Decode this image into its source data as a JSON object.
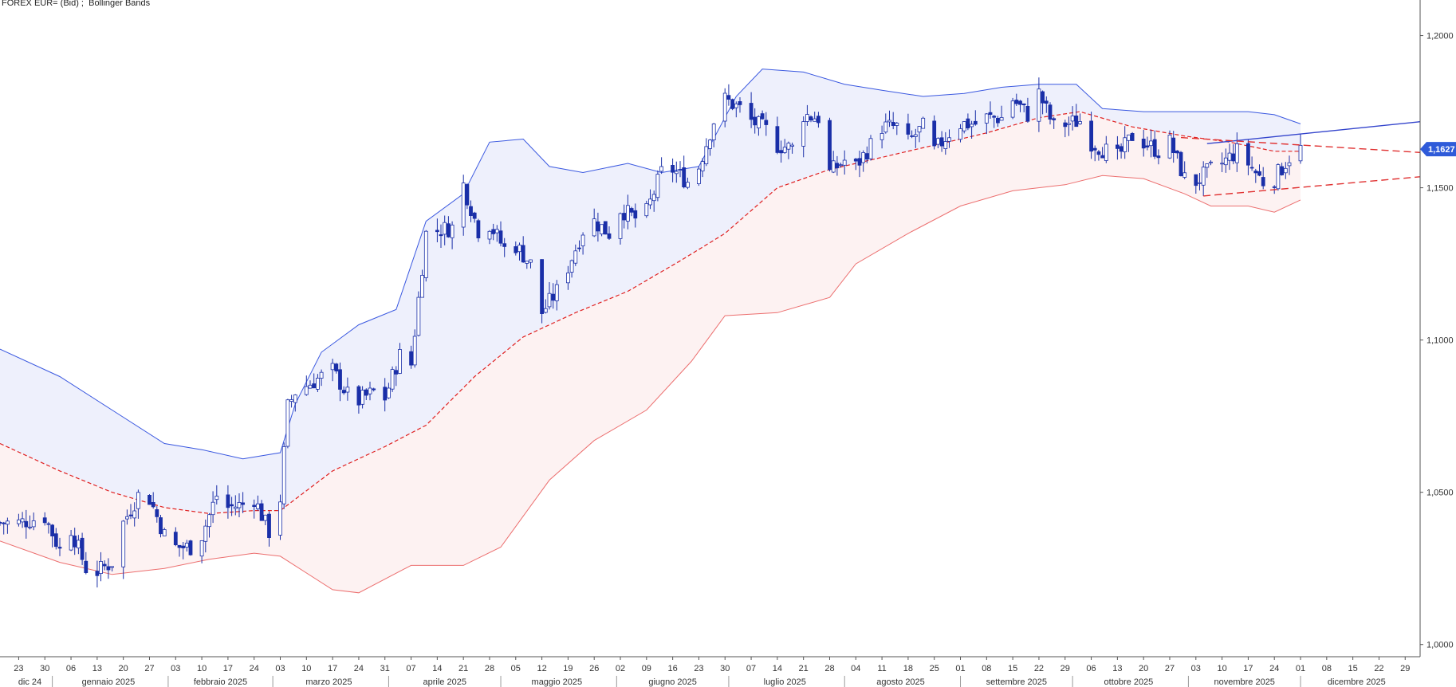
{
  "header": {
    "title": "FOREX EUR= (Bid) ;  Bollinger Bands"
  },
  "window_controls": [
    "□",
    "✕"
  ],
  "chart_data": {
    "type": "candlestick",
    "title": "FOREX EUR= (Bid) ;  Bollinger Bands",
    "instrument": "EUR=",
    "y_ticks": [
      "1,2000",
      "1,1500",
      "1,1000",
      "1,0500",
      "1,0000"
    ],
    "y_tick_values": [
      1.2,
      1.15,
      1.1,
      1.05,
      1.0
    ],
    "ylim": [
      0.996,
      1.208
    ],
    "last_price_label": "1,1627",
    "last_price": 1.1627,
    "x_start_date": "2024-12-18",
    "x_end_date": "2026-01-02",
    "day_ticks": [
      {
        "label": "23",
        "date": "2024-12-23"
      },
      {
        "label": "30",
        "date": "2024-12-30"
      },
      {
        "label": "06",
        "date": "2025-01-06"
      },
      {
        "label": "13",
        "date": "2025-01-13"
      },
      {
        "label": "20",
        "date": "2025-01-20"
      },
      {
        "label": "27",
        "date": "2025-01-27"
      },
      {
        "label": "03",
        "date": "2025-02-03"
      },
      {
        "label": "10",
        "date": "2025-02-10"
      },
      {
        "label": "17",
        "date": "2025-02-17"
      },
      {
        "label": "24",
        "date": "2025-02-24"
      },
      {
        "label": "03",
        "date": "2025-03-03"
      },
      {
        "label": "10",
        "date": "2025-03-10"
      },
      {
        "label": "17",
        "date": "2025-03-17"
      },
      {
        "label": "24",
        "date": "2025-03-24"
      },
      {
        "label": "31",
        "date": "2025-03-31"
      },
      {
        "label": "07",
        "date": "2025-04-07"
      },
      {
        "label": "14",
        "date": "2025-04-14"
      },
      {
        "label": "21",
        "date": "2025-04-21"
      },
      {
        "label": "28",
        "date": "2025-04-28"
      },
      {
        "label": "05",
        "date": "2025-05-05"
      },
      {
        "label": "12",
        "date": "2025-05-12"
      },
      {
        "label": "19",
        "date": "2025-05-19"
      },
      {
        "label": "26",
        "date": "2025-05-26"
      },
      {
        "label": "02",
        "date": "2025-06-02"
      },
      {
        "label": "09",
        "date": "2025-06-09"
      },
      {
        "label": "16",
        "date": "2025-06-16"
      },
      {
        "label": "23",
        "date": "2025-06-23"
      },
      {
        "label": "30",
        "date": "2025-06-30"
      },
      {
        "label": "07",
        "date": "2025-07-07"
      },
      {
        "label": "14",
        "date": "2025-07-14"
      },
      {
        "label": "21",
        "date": "2025-07-21"
      },
      {
        "label": "28",
        "date": "2025-07-28"
      },
      {
        "label": "04",
        "date": "2025-08-04"
      },
      {
        "label": "11",
        "date": "2025-08-11"
      },
      {
        "label": "18",
        "date": "2025-08-18"
      },
      {
        "label": "25",
        "date": "2025-08-25"
      },
      {
        "label": "01",
        "date": "2025-09-01"
      },
      {
        "label": "08",
        "date": "2025-09-08"
      },
      {
        "label": "15",
        "date": "2025-09-15"
      },
      {
        "label": "22",
        "date": "2025-09-22"
      },
      {
        "label": "29",
        "date": "2025-09-29"
      },
      {
        "label": "06",
        "date": "2025-10-06"
      },
      {
        "label": "13",
        "date": "2025-10-13"
      },
      {
        "label": "20",
        "date": "2025-10-20"
      },
      {
        "label": "27",
        "date": "2025-10-27"
      },
      {
        "label": "03",
        "date": "2025-11-03"
      },
      {
        "label": "10",
        "date": "2025-11-10"
      },
      {
        "label": "17",
        "date": "2025-11-17"
      },
      {
        "label": "24",
        "date": "2025-11-24"
      },
      {
        "label": "01",
        "date": "2025-12-01"
      },
      {
        "label": "08",
        "date": "2025-12-08"
      },
      {
        "label": "15",
        "date": "2025-12-15"
      },
      {
        "label": "22",
        "date": "2025-12-22"
      },
      {
        "label": "29",
        "date": "2025-12-29"
      }
    ],
    "month_labels": [
      {
        "label": "dic 24",
        "date": "2024-12-26"
      },
      {
        "label": "gennaio 2025",
        "date": "2025-01-16"
      },
      {
        "label": "febbraio 2025",
        "date": "2025-02-15"
      },
      {
        "label": "marzo 2025",
        "date": "2025-03-16"
      },
      {
        "label": "aprile 2025",
        "date": "2025-04-16"
      },
      {
        "label": "maggio 2025",
        "date": "2025-05-16"
      },
      {
        "label": "giugno 2025",
        "date": "2025-06-16"
      },
      {
        "label": "luglio 2025",
        "date": "2025-07-16"
      },
      {
        "label": "agosto 2025",
        "date": "2025-08-16"
      },
      {
        "label": "settembre 2025",
        "date": "2025-09-16"
      },
      {
        "label": "ottobre 2025",
        "date": "2025-10-16"
      },
      {
        "label": "novembre 2025",
        "date": "2025-11-16"
      },
      {
        "label": "dicembre 2025",
        "date": "2025-12-16"
      }
    ],
    "month_boundaries": [
      "2025-01-01",
      "2025-02-01",
      "2025-03-01",
      "2025-04-01",
      "2025-05-01",
      "2025-06-01",
      "2025-07-01",
      "2025-08-01",
      "2025-09-01",
      "2025-10-01",
      "2025-11-01",
      "2025-12-01"
    ],
    "close_path": [
      [
        "2024-12-18",
        1.04
      ],
      [
        "2024-12-23",
        1.04
      ],
      [
        "2024-12-30",
        1.042
      ],
      [
        "2025-01-03",
        1.031
      ],
      [
        "2025-01-06",
        1.038
      ],
      [
        "2025-01-10",
        1.025
      ],
      [
        "2025-01-13",
        1.024
      ],
      [
        "2025-01-17",
        1.027
      ],
      [
        "2025-01-20",
        1.04
      ],
      [
        "2025-01-24",
        1.049
      ],
      [
        "2025-01-27",
        1.048
      ],
      [
        "2025-01-31",
        1.036
      ],
      [
        "2025-02-03",
        1.032
      ],
      [
        "2025-02-07",
        1.032
      ],
      [
        "2025-02-10",
        1.036
      ],
      [
        "2025-02-14",
        1.049
      ],
      [
        "2025-02-17",
        1.045
      ],
      [
        "2025-02-21",
        1.046
      ],
      [
        "2025-02-24",
        1.048
      ],
      [
        "2025-02-28",
        1.037
      ],
      [
        "2025-03-03",
        1.048
      ],
      [
        "2025-03-05",
        1.078
      ],
      [
        "2025-03-07",
        1.083
      ],
      [
        "2025-03-10",
        1.085
      ],
      [
        "2025-03-14",
        1.088
      ],
      [
        "2025-03-17",
        1.09
      ],
      [
        "2025-03-21",
        1.082
      ],
      [
        "2025-03-24",
        1.08
      ],
      [
        "2025-03-28",
        1.083
      ],
      [
        "2025-03-31",
        1.081
      ],
      [
        "2025-04-04",
        1.095
      ],
      [
        "2025-04-07",
        1.092
      ],
      [
        "2025-04-11",
        1.135
      ],
      [
        "2025-04-14",
        1.136
      ],
      [
        "2025-04-18",
        1.137
      ],
      [
        "2025-04-21",
        1.151
      ],
      [
        "2025-04-25",
        1.136
      ],
      [
        "2025-04-28",
        1.138
      ],
      [
        "2025-05-02",
        1.13
      ],
      [
        "2025-05-05",
        1.131
      ],
      [
        "2025-05-09",
        1.125
      ],
      [
        "2025-05-12",
        1.109
      ],
      [
        "2025-05-16",
        1.116
      ],
      [
        "2025-05-19",
        1.124
      ],
      [
        "2025-05-23",
        1.136
      ],
      [
        "2025-05-26",
        1.139
      ],
      [
        "2025-05-30",
        1.135
      ],
      [
        "2025-06-02",
        1.143
      ],
      [
        "2025-06-06",
        1.14
      ],
      [
        "2025-06-09",
        1.142
      ],
      [
        "2025-06-13",
        1.155
      ],
      [
        "2025-06-16",
        1.156
      ],
      [
        "2025-06-20",
        1.152
      ],
      [
        "2025-06-23",
        1.157
      ],
      [
        "2025-06-27",
        1.172
      ],
      [
        "2025-06-30",
        1.179
      ],
      [
        "2025-07-04",
        1.176
      ],
      [
        "2025-07-07",
        1.172
      ],
      [
        "2025-07-11",
        1.169
      ],
      [
        "2025-07-14",
        1.164
      ],
      [
        "2025-07-18",
        1.163
      ],
      [
        "2025-07-21",
        1.174
      ],
      [
        "2025-07-25",
        1.173
      ],
      [
        "2025-07-28",
        1.155
      ],
      [
        "2025-08-01",
        1.159
      ],
      [
        "2025-08-04",
        1.157
      ],
      [
        "2025-08-08",
        1.164
      ],
      [
        "2025-08-11",
        1.17
      ],
      [
        "2025-08-15",
        1.17
      ],
      [
        "2025-08-18",
        1.165
      ],
      [
        "2025-08-22",
        1.17
      ],
      [
        "2025-08-25",
        1.162
      ],
      [
        "2025-08-29",
        1.168
      ],
      [
        "2025-09-01",
        1.171
      ],
      [
        "2025-09-05",
        1.171
      ],
      [
        "2025-09-08",
        1.173
      ],
      [
        "2025-09-12",
        1.173
      ],
      [
        "2025-09-15",
        1.179
      ],
      [
        "2025-09-19",
        1.174
      ],
      [
        "2025-09-22",
        1.181
      ],
      [
        "2025-09-26",
        1.17
      ],
      [
        "2025-09-29",
        1.171
      ],
      [
        "2025-10-03",
        1.172
      ],
      [
        "2025-10-06",
        1.165
      ],
      [
        "2025-10-10",
        1.162
      ],
      [
        "2025-10-13",
        1.16
      ],
      [
        "2025-10-17",
        1.167
      ],
      [
        "2025-10-20",
        1.165
      ],
      [
        "2025-10-24",
        1.162
      ],
      [
        "2025-10-27",
        1.165
      ],
      [
        "2025-10-31",
        1.153
      ],
      [
        "2025-11-03",
        1.152
      ],
      [
        "2025-11-07",
        1.156
      ],
      [
        "2025-11-10",
        1.158
      ],
      [
        "2025-11-14",
        1.162
      ],
      [
        "2025-11-17",
        1.158
      ],
      [
        "2025-11-21",
        1.152
      ],
      [
        "2025-11-24",
        1.153
      ],
      [
        "2025-11-28",
        1.16
      ],
      [
        "2025-12-01",
        1.1627
      ]
    ],
    "bollinger": {
      "upper": [
        [
          "2024-12-18",
          1.097
        ],
        [
          "2025-01-03",
          1.088
        ],
        [
          "2025-01-17",
          1.077
        ],
        [
          "2025-01-31",
          1.066
        ],
        [
          "2025-02-10",
          1.064
        ],
        [
          "2025-02-21",
          1.061
        ],
        [
          "2025-03-03",
          1.063
        ],
        [
          "2025-03-07",
          1.079
        ],
        [
          "2025-03-14",
          1.096
        ],
        [
          "2025-03-24",
          1.105
        ],
        [
          "2025-04-03",
          1.11
        ],
        [
          "2025-04-11",
          1.139
        ],
        [
          "2025-04-21",
          1.148
        ],
        [
          "2025-04-28",
          1.165
        ],
        [
          "2025-05-07",
          1.166
        ],
        [
          "2025-05-14",
          1.157
        ],
        [
          "2025-05-23",
          1.155
        ],
        [
          "2025-06-04",
          1.158
        ],
        [
          "2025-06-13",
          1.155
        ],
        [
          "2025-06-23",
          1.157
        ],
        [
          "2025-07-03",
          1.18
        ],
        [
          "2025-07-10",
          1.189
        ],
        [
          "2025-07-21",
          1.188
        ],
        [
          "2025-08-01",
          1.184
        ],
        [
          "2025-08-11",
          1.182
        ],
        [
          "2025-08-22",
          1.18
        ],
        [
          "2025-09-02",
          1.181
        ],
        [
          "2025-09-12",
          1.183
        ],
        [
          "2025-09-22",
          1.184
        ],
        [
          "2025-10-02",
          1.184
        ],
        [
          "2025-10-09",
          1.176
        ],
        [
          "2025-10-20",
          1.175
        ],
        [
          "2025-11-03",
          1.175
        ],
        [
          "2025-11-17",
          1.175
        ],
        [
          "2025-11-24",
          1.174
        ],
        [
          "2025-12-01",
          1.171
        ]
      ],
      "middle": [
        [
          "2024-12-18",
          1.066
        ],
        [
          "2025-01-03",
          1.057
        ],
        [
          "2025-01-17",
          1.05
        ],
        [
          "2025-01-31",
          1.045
        ],
        [
          "2025-02-12",
          1.043
        ],
        [
          "2025-02-24",
          1.044
        ],
        [
          "2025-03-03",
          1.044
        ],
        [
          "2025-03-17",
          1.057
        ],
        [
          "2025-03-31",
          1.065
        ],
        [
          "2025-04-11",
          1.072
        ],
        [
          "2025-04-24",
          1.088
        ],
        [
          "2025-05-07",
          1.101
        ],
        [
          "2025-05-21",
          1.109
        ],
        [
          "2025-06-04",
          1.116
        ],
        [
          "2025-06-18",
          1.126
        ],
        [
          "2025-06-30",
          1.135
        ],
        [
          "2025-07-14",
          1.15
        ],
        [
          "2025-07-28",
          1.156
        ],
        [
          "2025-08-11",
          1.16
        ],
        [
          "2025-08-25",
          1.164
        ],
        [
          "2025-09-08",
          1.168
        ],
        [
          "2025-09-22",
          1.173
        ],
        [
          "2025-10-03",
          1.175
        ],
        [
          "2025-10-17",
          1.17
        ],
        [
          "2025-10-31",
          1.167
        ],
        [
          "2025-11-12",
          1.165
        ],
        [
          "2025-11-24",
          1.162
        ],
        [
          "2025-12-01",
          1.162
        ]
      ],
      "lower": [
        [
          "2024-12-18",
          1.034
        ],
        [
          "2025-01-03",
          1.027
        ],
        [
          "2025-01-17",
          1.023
        ],
        [
          "2025-01-31",
          1.025
        ],
        [
          "2025-02-12",
          1.028
        ],
        [
          "2025-02-24",
          1.03
        ],
        [
          "2025-03-03",
          1.029
        ],
        [
          "2025-03-17",
          1.018
        ],
        [
          "2025-03-24",
          1.017
        ],
        [
          "2025-04-07",
          1.026
        ],
        [
          "2025-04-21",
          1.026
        ],
        [
          "2025-05-01",
          1.032
        ],
        [
          "2025-05-14",
          1.054
        ],
        [
          "2025-05-26",
          1.067
        ],
        [
          "2025-06-09",
          1.077
        ],
        [
          "2025-06-21",
          1.093
        ],
        [
          "2025-06-30",
          1.108
        ],
        [
          "2025-07-14",
          1.109
        ],
        [
          "2025-07-28",
          1.114
        ],
        [
          "2025-08-04",
          1.125
        ],
        [
          "2025-08-18",
          1.135
        ],
        [
          "2025-09-01",
          1.144
        ],
        [
          "2025-09-15",
          1.149
        ],
        [
          "2025-09-29",
          1.151
        ],
        [
          "2025-10-09",
          1.154
        ],
        [
          "2025-10-20",
          1.153
        ],
        [
          "2025-10-31",
          1.148
        ],
        [
          "2025-11-07",
          1.144
        ],
        [
          "2025-11-17",
          1.144
        ],
        [
          "2025-11-24",
          1.142
        ],
        [
          "2025-12-01",
          1.146
        ]
      ]
    },
    "trendlines": [
      {
        "style": "solid",
        "color": "#3344cc",
        "from": [
          "2025-11-06",
          1.1645
        ],
        "to": [
          "2026-01-02",
          1.1717
        ]
      },
      {
        "style": "dashed",
        "color": "#e03030",
        "from": [
          "2025-10-30",
          1.1665
        ],
        "to": [
          "2026-01-02",
          1.1616
        ]
      },
      {
        "style": "dashed",
        "color": "#e03030",
        "from": [
          "2025-11-05",
          1.1473
        ],
        "to": [
          "2026-01-02",
          1.1536
        ]
      }
    ],
    "colors": {
      "up_candle_border": "#1a2fa8",
      "down_candle": "#1a2fa8",
      "upper_band": "#3a58e0",
      "lower_band": "#ec6f6f",
      "middle_band": "#e02020",
      "upper_fill": "#eef0fc",
      "lower_fill": "#fdf2f2",
      "last_price_box": "#2f5bd9",
      "grid": "#d9d9d9"
    },
    "xlabel": "",
    "ylabel": "",
    "grid": false,
    "legend": "none"
  }
}
